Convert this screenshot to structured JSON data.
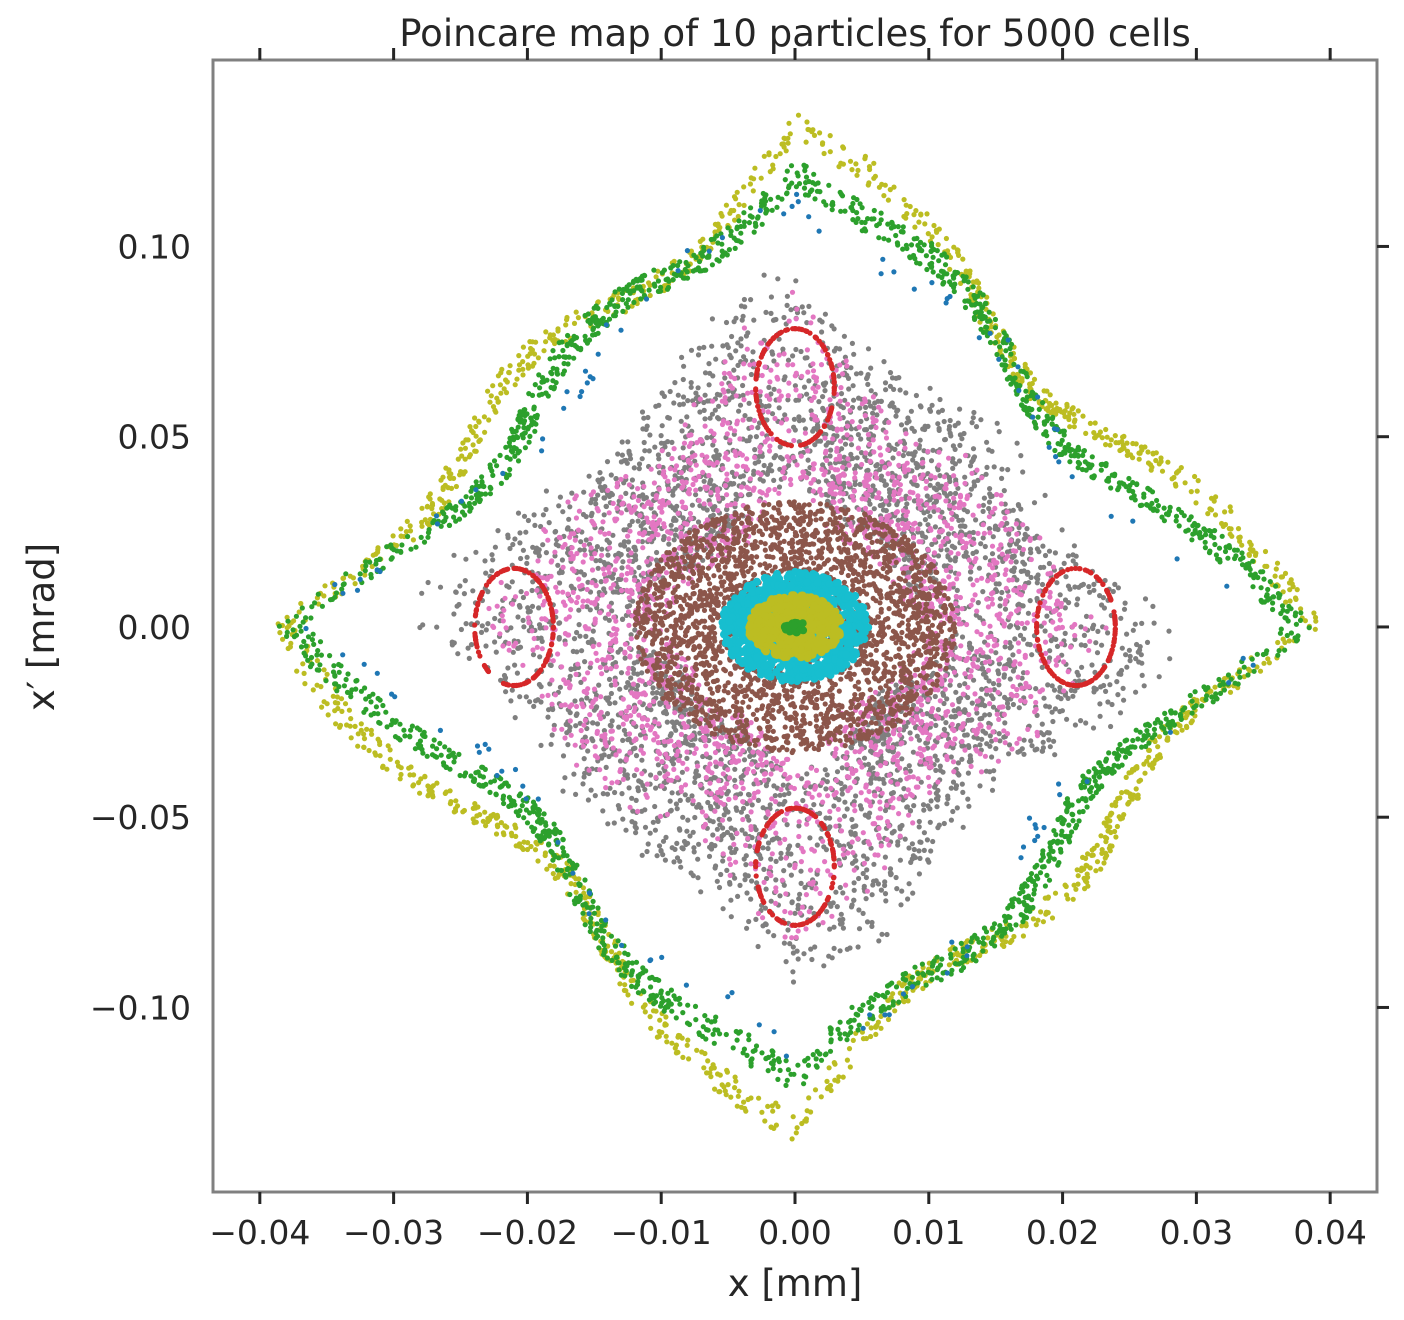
{
  "chart_data": {
    "type": "scatter",
    "title": "Poincare map of 10 particles for 5000 cells",
    "xlabel": "x [mm]",
    "ylabel": "x′ [mrad]",
    "xlim": [
      -0.0435,
      0.0435
    ],
    "ylim": [
      -0.1485,
      0.149
    ],
    "xticks": [
      -0.04,
      -0.03,
      -0.02,
      -0.01,
      0.0,
      0.01,
      0.02,
      0.03,
      0.04
    ],
    "xtick_labels": [
      "−0.04",
      "−0.03",
      "−0.02",
      "−0.01",
      "0.00",
      "0.01",
      "0.02",
      "0.03",
      "0.04"
    ],
    "yticks": [
      -0.1,
      -0.05,
      0.0,
      0.05,
      0.1
    ],
    "ytick_labels": [
      "−0.10",
      "−0.05",
      "0.00",
      "0.05",
      "0.10"
    ],
    "grid": false,
    "legend": "none",
    "colors": [
      "#1f77b4",
      "#ff7f0e",
      "#2ca02c",
      "#d62728",
      "#9467bd",
      "#8c564b",
      "#e377c2",
      "#7f7f7f",
      "#bcbd22",
      "#17becf"
    ],
    "series": [
      {
        "color": "#bcbd22",
        "shape": "diamond",
        "points": 1300,
        "x_amp": 0.0395,
        "y_amp": 0.1355,
        "spread": 0.035
      },
      {
        "color": "#2ca02c",
        "shape": "diamond",
        "points": 1800,
        "x_amp": 0.037,
        "y_amp": 0.13,
        "spread": 0.04
      },
      {
        "color": "#1f77b4",
        "shape": "diamond",
        "points": 120,
        "x_amp": 0.0355,
        "y_amp": 0.125,
        "spread": 0.04
      },
      {
        "color": "#7f7f7f",
        "shape": "diamond",
        "points": 3500,
        "x_amp": 0.03,
        "y_amp": 0.1,
        "spread": 0.08
      },
      {
        "color": "#e377c2",
        "shape": "diamond",
        "points": 2200,
        "x_amp": 0.026,
        "y_amp": 0.088,
        "spread": 0.08
      },
      {
        "color": "#d62728",
        "shape": "islands",
        "points": 600,
        "x_amp": 0.021,
        "y_amp": 0.07,
        "spread": 0.03
      },
      {
        "color": "#8c564b",
        "shape": "disk",
        "points": 2600,
        "x_amp": 0.012,
        "y_amp": 0.033,
        "spread": 0.0
      },
      {
        "color": "#17becf",
        "shape": "ellipse",
        "points": 900,
        "x_amp": 0.0055,
        "y_amp": 0.0145,
        "spread": 0.0
      },
      {
        "color": "#bcbd22",
        "shape": "ellipse",
        "points": 500,
        "x_amp": 0.0035,
        "y_amp": 0.0085,
        "spread": 0.0
      },
      {
        "color": "#2ca02c",
        "shape": "ellipse",
        "points": 30,
        "x_amp": 0.0008,
        "y_amp": 0.0015,
        "spread": 0.0
      }
    ]
  }
}
